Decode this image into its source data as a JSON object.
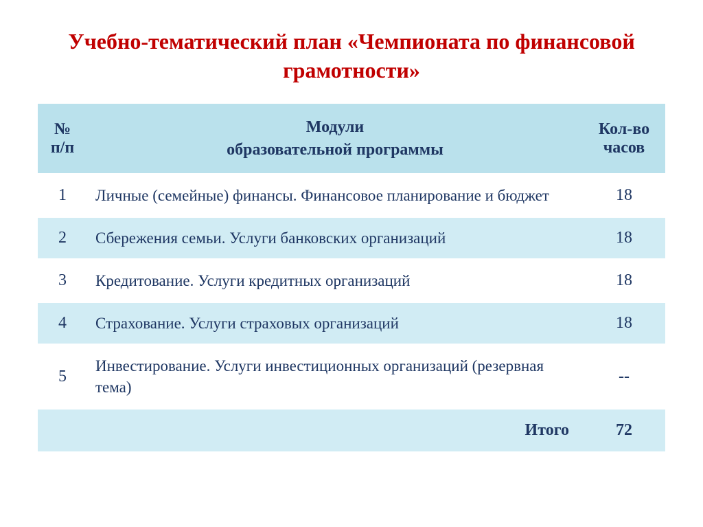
{
  "title": "Учебно-тематический план «Чемпионата по финансовой грамотности»",
  "styling": {
    "title_color": "#c00000",
    "text_color": "#1f3763",
    "header_bg": "#bae1ec",
    "row_even_bg": "#d1ecf4",
    "row_odd_bg": "#ffffff",
    "total_bg": "#d1ecf4",
    "title_fontsize": 32,
    "cell_fontsize": 24,
    "body_fontsize": 23
  },
  "table": {
    "headers": {
      "num": "№ п/п",
      "module_line1": "Модули",
      "module_line2": "образовательной программы",
      "hours": "Кол-во часов"
    },
    "rows": [
      {
        "num": "1",
        "module": "Личные (семейные) финансы. Финансовое планирование и бюджет",
        "hours": "18"
      },
      {
        "num": "2",
        "module": "Сбережения семьи. Услуги банковских организаций",
        "hours": "18"
      },
      {
        "num": "3",
        "module": "Кредитование. Услуги кредитных организаций",
        "hours": "18"
      },
      {
        "num": "4",
        "module": "Страхование. Услуги страховых организаций",
        "hours": "18"
      },
      {
        "num": "5",
        "module": "Инвестирование. Услуги инвестиционных организаций (резервная тема)",
        "hours": "--"
      }
    ],
    "total": {
      "label": "Итого",
      "hours": "72"
    }
  }
}
